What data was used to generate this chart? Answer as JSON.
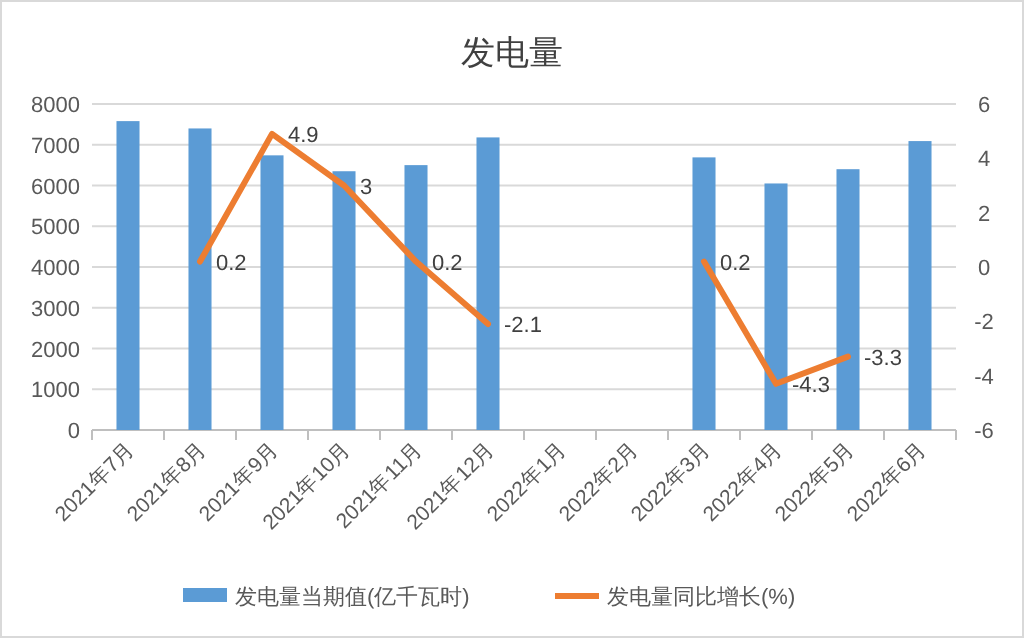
{
  "chart_data": {
    "type": "bar",
    "title": "发电量",
    "categories": [
      "2021年7月",
      "2021年8月",
      "2021年9月",
      "2021年10月",
      "2021年11月",
      "2021年12月",
      "2022年1月",
      "2022年2月",
      "2022年3月",
      "2022年4月",
      "2022年5月",
      "2022年6月"
    ],
    "series": [
      {
        "name": "发电量当期值(亿千瓦时)",
        "color": "#5b9bd5",
        "values": [
          7580,
          7400,
          6740,
          6350,
          6500,
          7180,
          null,
          null,
          6690,
          6050,
          6400,
          7090
        ]
      },
      {
        "name": "发电量同比增长(%)",
        "type": "line",
        "axis": "y2",
        "color": "#ed7d31",
        "values": [
          null,
          0.2,
          4.9,
          3,
          0.2,
          -2.1,
          null,
          null,
          0.2,
          -4.3,
          -3.3,
          null
        ],
        "value_labels": [
          null,
          "0.2",
          "4.9",
          "3",
          "0.2",
          "-2.1",
          null,
          null,
          "0.2",
          "-4.3",
          "-3.3",
          null
        ]
      }
    ],
    "ylim": [
      0,
      8000
    ],
    "yticks": [
      0,
      1000,
      2000,
      3000,
      4000,
      5000,
      6000,
      7000,
      8000
    ],
    "y2lim": [
      -6,
      6
    ],
    "y2ticks": [
      -6,
      -4,
      -2,
      0,
      2,
      4,
      6
    ],
    "grid": "y",
    "legend": "bottom"
  }
}
